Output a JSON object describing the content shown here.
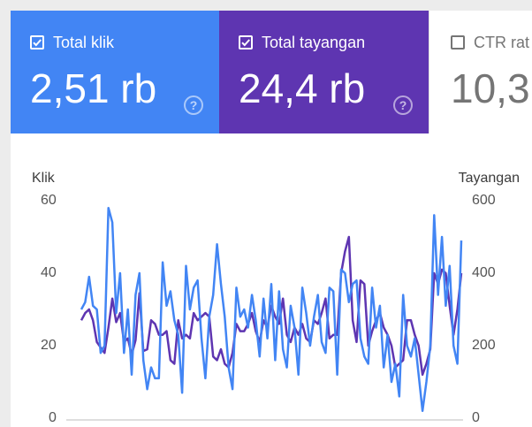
{
  "tiles": {
    "clicks": {
      "label": "Total klik",
      "value": "2,51 rb",
      "checked": true,
      "color": "#4285f4"
    },
    "impressions": {
      "label": "Total tayangan",
      "value": "24,4 rb",
      "checked": true,
      "color": "#5e35b1"
    },
    "ctr": {
      "label": "CTR rat",
      "value": "10,3",
      "checked": false
    }
  },
  "help_icon": "?",
  "chart_data": {
    "type": "line",
    "left_axis_title": "Klik",
    "right_axis_title": "Tayangan",
    "left_ticks": [
      "60",
      "40",
      "20",
      "0"
    ],
    "right_ticks": [
      "600",
      "400",
      "200",
      "0"
    ],
    "ylim_left": [
      0,
      60
    ],
    "ylim_right": [
      0,
      600
    ],
    "grid": false,
    "series": [
      {
        "name": "Total klik",
        "axis": "left",
        "color": "#4285f4",
        "values": [
          30,
          32,
          39,
          31,
          30,
          18,
          20,
          58,
          54,
          29,
          40,
          18,
          30,
          12,
          34,
          40,
          16,
          8,
          14,
          11,
          11,
          43,
          31,
          35,
          27,
          23,
          7,
          42,
          30,
          36,
          38,
          22,
          11,
          28,
          34,
          48,
          37,
          28,
          14,
          8,
          36,
          28,
          30,
          25,
          34,
          27,
          17,
          33,
          22,
          37,
          16,
          35,
          19,
          14,
          31,
          25,
          12,
          36,
          29,
          20,
          28,
          34,
          21,
          18,
          36,
          35,
          12,
          41,
          40,
          32,
          37,
          38,
          22,
          17,
          15,
          36,
          25,
          31,
          14,
          23,
          10,
          15,
          6,
          34,
          20,
          17,
          22,
          12,
          2,
          10,
          20,
          56,
          34,
          50,
          31,
          42,
          20,
          15,
          49
        ]
      },
      {
        "name": "Total tayangan",
        "axis": "right",
        "color": "#5e35b1",
        "values": [
          270,
          290,
          300,
          270,
          210,
          195,
          180,
          250,
          330,
          265,
          290,
          210,
          220,
          175,
          215,
          345,
          185,
          190,
          270,
          260,
          230,
          230,
          240,
          160,
          150,
          270,
          220,
          230,
          220,
          290,
          270,
          280,
          290,
          280,
          170,
          160,
          190,
          150,
          140,
          180,
          260,
          240,
          240,
          260,
          290,
          240,
          210,
          270,
          250,
          310,
          280,
          260,
          330,
          230,
          210,
          250,
          230,
          260,
          220,
          210,
          270,
          260,
          290,
          330,
          220,
          230,
          230,
          400,
          460,
          500,
          270,
          210,
          380,
          370,
          200,
          240,
          270,
          290,
          250,
          230,
          200,
          140,
          150,
          160,
          270,
          270,
          230,
          200,
          120,
          150,
          190,
          400,
          370,
          410,
          400,
          310,
          230,
          300,
          400
        ]
      }
    ]
  }
}
